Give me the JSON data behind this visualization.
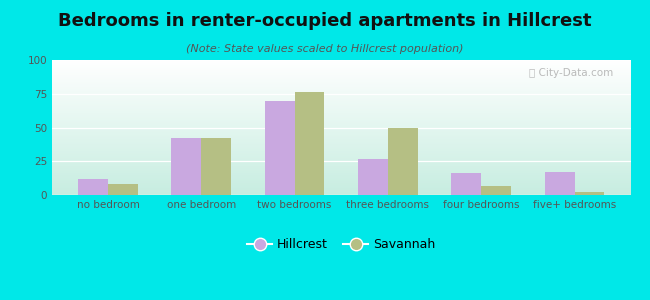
{
  "title": "Bedrooms in renter-occupied apartments in Hillcrest",
  "subtitle": "(Note: State values scaled to Hillcrest population)",
  "categories": [
    "no bedroom",
    "one bedroom",
    "two bedrooms",
    "three bedrooms",
    "four bedrooms",
    "five+ bedrooms"
  ],
  "hillcrest": [
    12,
    42,
    70,
    27,
    16,
    17
  ],
  "savannah": [
    8,
    42,
    76,
    50,
    7,
    2
  ],
  "hillcrest_color": "#c9a8e0",
  "savannah_color": "#b5bf84",
  "bg_outer": "#00e8e8",
  "bg_plot_topleft": "#e8f5ee",
  "bg_plot_topright": "#f5f8f8",
  "bg_plot_bottom": "#c8ece0",
  "ylim": [
    0,
    100
  ],
  "yticks": [
    0,
    25,
    50,
    75,
    100
  ],
  "bar_width": 0.32,
  "legend_hillcrest": "Hillcrest",
  "legend_savannah": "Savannah",
  "title_fontsize": 13,
  "subtitle_fontsize": 8,
  "tick_fontsize": 7.5,
  "legend_fontsize": 9
}
